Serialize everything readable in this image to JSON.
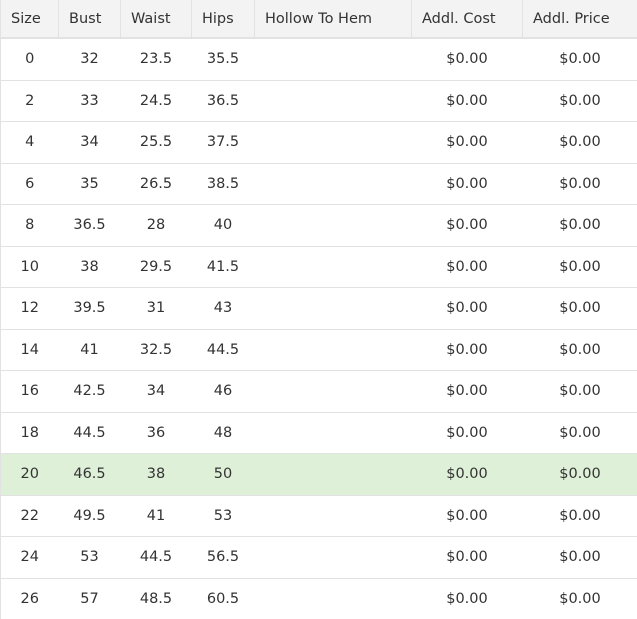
{
  "columns": [
    "Size",
    "Bust",
    "Waist",
    "Hips",
    "Hollow To Hem",
    "Addl. Cost",
    "Addl. Price"
  ],
  "highlight_color": "#dff0d8",
  "rows": [
    [
      "0",
      "32",
      "23.5",
      "35.5",
      "",
      "$0.00",
      "$0.00"
    ],
    [
      "2",
      "33",
      "24.5",
      "36.5",
      "",
      "$0.00",
      "$0.00"
    ],
    [
      "4",
      "34",
      "25.5",
      "37.5",
      "",
      "$0.00",
      "$0.00"
    ],
    [
      "6",
      "35",
      "26.5",
      "38.5",
      "",
      "$0.00",
      "$0.00"
    ],
    [
      "8",
      "36.5",
      "28",
      "40",
      "",
      "$0.00",
      "$0.00"
    ],
    [
      "10",
      "38",
      "29.5",
      "41.5",
      "",
      "$0.00",
      "$0.00"
    ],
    [
      "12",
      "39.5",
      "31",
      "43",
      "",
      "$0.00",
      "$0.00"
    ],
    [
      "14",
      "41",
      "32.5",
      "44.5",
      "",
      "$0.00",
      "$0.00"
    ],
    [
      "16",
      "42.5",
      "34",
      "46",
      "",
      "$0.00",
      "$0.00"
    ],
    [
      "18",
      "44.5",
      "36",
      "48",
      "",
      "$0.00",
      "$0.00"
    ],
    [
      "20",
      "46.5",
      "38",
      "50",
      "",
      "$0.00",
      "$0.00"
    ],
    [
      "22",
      "49.5",
      "41",
      "53",
      "",
      "$0.00",
      "$0.00"
    ],
    [
      "24",
      "53",
      "44.5",
      "56.5",
      "",
      "$0.00",
      "$0.00"
    ],
    [
      "26",
      "57",
      "48.5",
      "60.5",
      "",
      "$0.00",
      "$0.00"
    ]
  ],
  "highlighted_row": 10
}
